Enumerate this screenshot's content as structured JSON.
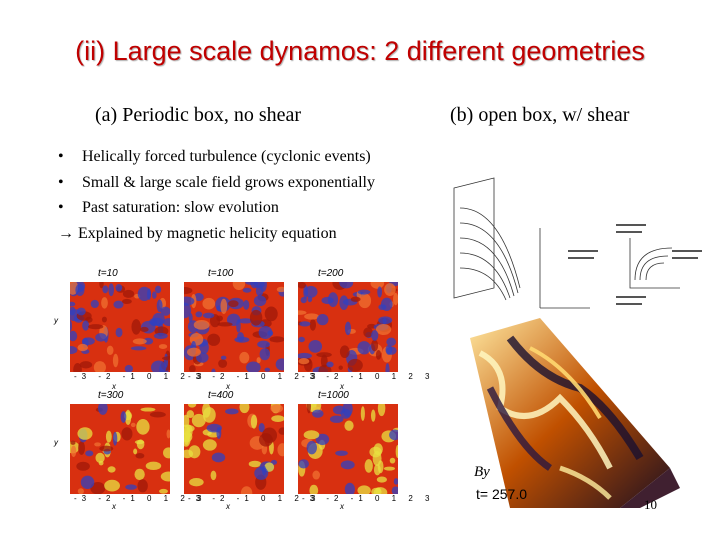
{
  "slide": {
    "title": "(ii) Large scale dynamos: 2 different geometries",
    "left_heading": "(a) Periodic box, no shear",
    "right_heading": "(b) open box, w/ shear",
    "bullets": [
      "Helically forced turbulence (cyclonic events)",
      "Small & large scale field grows exponentially",
      "Past saturation: slow evolution"
    ],
    "arrow_line": "Explained by magnetic helicity equation",
    "bullet_symbol": "•",
    "arrow_symbol": "→",
    "page_number": "10"
  },
  "periodic_panels": {
    "time_labels": [
      "t=10",
      "t=100",
      "t=200",
      "t=300",
      "t=400",
      "t=1000"
    ],
    "y_axis_label": "y",
    "x_axis_label": "x",
    "axis_ticks": [
      "-3",
      "-2",
      "-1",
      "0",
      "1",
      "2",
      "3"
    ]
  },
  "shear_figure": {
    "field_label": "By",
    "time_label": "t= 257.0"
  },
  "colors": {
    "title": "#c00000",
    "field_red": "#d83010",
    "field_blue": "#3040c0",
    "field_yellow": "#e8e040"
  }
}
